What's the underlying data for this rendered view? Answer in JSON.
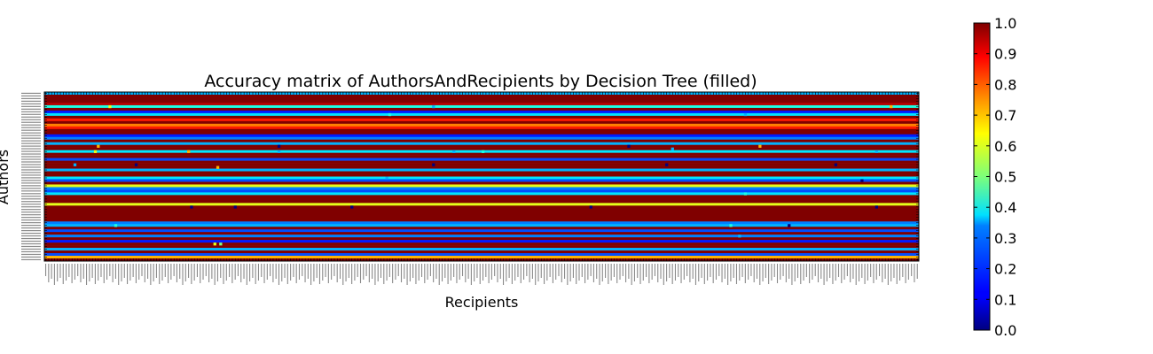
{
  "chart_data": {
    "type": "heatmap",
    "title": "Accuracy matrix of AuthorsAndRecipients by Decision Tree (filled)",
    "xlabel": "Recipients",
    "ylabel": "Authors",
    "colormap": "jet",
    "value_range": [
      0.0,
      1.0
    ],
    "colorbar_ticks": [
      "0.0",
      "0.1",
      "0.2",
      "0.3",
      "0.4",
      "0.5",
      "0.6",
      "0.7",
      "0.8",
      "0.9",
      "1.0"
    ],
    "n_rows": 64,
    "n_cols": 300,
    "row_values": [
      0.3,
      1.0,
      1.0,
      1.0,
      0.95,
      0.4,
      1.0,
      0.15,
      0.35,
      1.0,
      0.85,
      1.0,
      0.75,
      0.85,
      1.0,
      1.0,
      0.15,
      0.25,
      1.0,
      0.3,
      1.0,
      1.0,
      0.35,
      1.0,
      1.0,
      0.2,
      1.0,
      1.0,
      1.0,
      0.3,
      1.0,
      1.0,
      0.35,
      0.2,
      1.0,
      0.6,
      0.25,
      0.2,
      0.35,
      1.0,
      1.0,
      1.0,
      0.6,
      1.0,
      1.0,
      1.0,
      1.0,
      1.0,
      1.0,
      0.25,
      0.3,
      1.0,
      0.2,
      1.0,
      0.25,
      1.0,
      0.15,
      1.0,
      1.0,
      0.3,
      1.0,
      0.2,
      0.7,
      1.0
    ],
    "outliers": [
      {
        "row": 5,
        "col": 22,
        "value": 0.6
      },
      {
        "row": 5,
        "col": 133,
        "value": 0.3
      },
      {
        "row": 5,
        "col": 290,
        "value": 0.7
      },
      {
        "row": 8,
        "col": 118,
        "value": 0.4
      },
      {
        "row": 8,
        "col": 240,
        "value": 0.3
      },
      {
        "row": 20,
        "col": 18,
        "value": 0.7
      },
      {
        "row": 20,
        "col": 80,
        "value": 0.0
      },
      {
        "row": 20,
        "col": 200,
        "value": 0.0
      },
      {
        "row": 20,
        "col": 245,
        "value": 0.7
      },
      {
        "row": 21,
        "col": 215,
        "value": 0.3
      },
      {
        "row": 22,
        "col": 17,
        "value": 0.6
      },
      {
        "row": 22,
        "col": 49,
        "value": 0.7
      },
      {
        "row": 22,
        "col": 80,
        "value": 0.3
      },
      {
        "row": 22,
        "col": 140,
        "value": 0.3
      },
      {
        "row": 22,
        "col": 150,
        "value": 0.4
      },
      {
        "row": 22,
        "col": 285,
        "value": 0.3
      },
      {
        "row": 27,
        "col": 10,
        "value": 0.3
      },
      {
        "row": 27,
        "col": 31,
        "value": 0.0
      },
      {
        "row": 27,
        "col": 133,
        "value": 0.0
      },
      {
        "row": 27,
        "col": 213,
        "value": 0.0
      },
      {
        "row": 27,
        "col": 271,
        "value": 0.0
      },
      {
        "row": 28,
        "col": 59,
        "value": 0.7
      },
      {
        "row": 32,
        "col": 117,
        "value": 0.3
      },
      {
        "row": 33,
        "col": 280,
        "value": 0.0
      },
      {
        "row": 38,
        "col": 240,
        "value": 0.4
      },
      {
        "row": 43,
        "col": 50,
        "value": 0.0
      },
      {
        "row": 43,
        "col": 65,
        "value": 0.0
      },
      {
        "row": 43,
        "col": 105,
        "value": 0.0
      },
      {
        "row": 43,
        "col": 187,
        "value": 0.0
      },
      {
        "row": 43,
        "col": 285,
        "value": 0.0
      },
      {
        "row": 50,
        "col": 24,
        "value": 0.4
      },
      {
        "row": 50,
        "col": 235,
        "value": 0.4
      },
      {
        "row": 50,
        "col": 255,
        "value": 0.0
      },
      {
        "row": 54,
        "col": 238,
        "value": 0.3
      },
      {
        "row": 57,
        "col": 58,
        "value": 0.6
      },
      {
        "row": 57,
        "col": 60,
        "value": 0.5
      }
    ]
  }
}
